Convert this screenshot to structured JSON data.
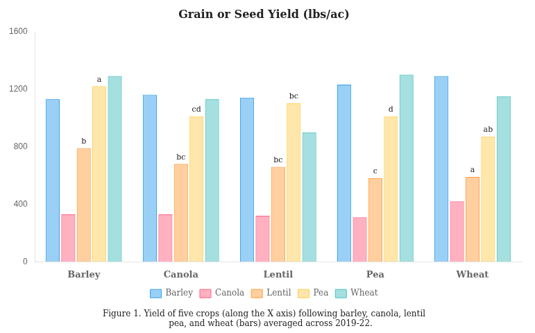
{
  "chart_data": {
    "type": "bar",
    "title": "Grain or Seed Yield (lbs/ac)",
    "caption": "Figure 1. Yield of five crops (along the X axis) following barley, canola, lentil\n     pea, and wheat (bars) averaged across 2019-22.",
    "categories": [
      "Barley",
      "Canola",
      "Lentil",
      "Pea",
      "Wheat"
    ],
    "series": [
      {
        "name": "Barley",
        "values": [
          1130,
          1160,
          1140,
          1230,
          1290
        ]
      },
      {
        "name": "Canola",
        "values": [
          330,
          330,
          320,
          310,
          420
        ]
      },
      {
        "name": "Lentil",
        "values": [
          790,
          680,
          660,
          580,
          590
        ],
        "annotations": [
          "b",
          "bc",
          "bc",
          "c",
          "a"
        ]
      },
      {
        "name": "Pea",
        "values": [
          1220,
          1010,
          1100,
          1010,
          870
        ],
        "annotations": [
          "a",
          "cd",
          "bc",
          "d",
          "ab"
        ]
      },
      {
        "name": "Wheat",
        "values": [
          1290,
          1130,
          900,
          1300,
          1150
        ]
      }
    ],
    "ylim": [
      0,
      1600
    ],
    "yticks": [
      0,
      400,
      800,
      1200,
      1600
    ],
    "grid": false,
    "legend": "bottom"
  }
}
